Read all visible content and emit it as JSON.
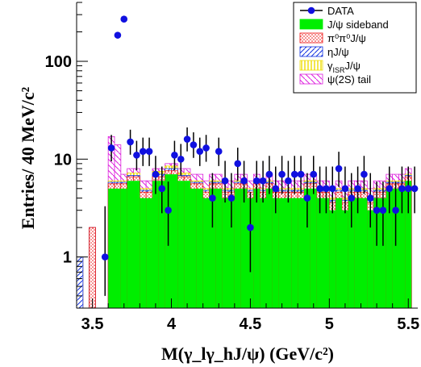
{
  "chart_data": {
    "type": "bar",
    "xlabel": "M(γ_lγ_hJ/ψ)  (GeV/c²)",
    "ylabel": "Entries/ 40 MeV/c²",
    "xlim": [
      3.4,
      5.56
    ],
    "ylim": [
      0.3,
      400
    ],
    "yscale": "log",
    "x_ticks": [
      "3.5",
      "4",
      "4.5",
      "5",
      "5.5"
    ],
    "y_ticks": [
      "1",
      "10",
      "100"
    ],
    "legend_position": "top-right",
    "colors": {
      "data": "#1010e0",
      "sideband": "#00ee00",
      "pi0pi0": "#ee1010",
      "eta": "#1030e0",
      "gamma_isr": "#eedd00",
      "psi2s": "#dd20dd"
    },
    "series": [
      {
        "name": "DATA",
        "kind": "points",
        "x": [
          3.58,
          3.62,
          3.66,
          3.7,
          3.74,
          3.78,
          3.82,
          3.86,
          3.9,
          3.94,
          3.98,
          4.02,
          4.06,
          4.1,
          4.14,
          4.18,
          4.22,
          4.26,
          4.3,
          4.34,
          4.38,
          4.42,
          4.46,
          4.5,
          4.54,
          4.58,
          4.62,
          4.66,
          4.7,
          4.74,
          4.78,
          4.82,
          4.86,
          4.9,
          4.94,
          4.98,
          5.02,
          5.06,
          5.1,
          5.14,
          5.18,
          5.22,
          5.26,
          5.3,
          5.34,
          5.38,
          5.42,
          5.46,
          5.5,
          5.54
        ],
        "y": [
          1,
          13,
          185,
          270,
          15,
          11,
          12,
          12,
          7,
          5,
          3,
          11,
          10,
          16,
          14,
          12,
          13,
          4,
          12,
          6,
          4,
          9,
          6,
          2,
          6,
          6,
          7,
          5,
          7,
          6,
          7,
          7,
          4,
          7,
          5,
          5,
          5,
          8,
          5,
          4,
          5,
          7,
          4,
          3,
          3,
          5,
          3,
          5,
          5,
          5
        ],
        "err_lo": [
          0.6,
          3.5,
          14,
          16,
          3.9,
          3.3,
          3.5,
          3.5,
          2.6,
          2.2,
          1.7,
          3.3,
          3.2,
          4,
          3.7,
          3.5,
          3.6,
          2,
          3.5,
          2.4,
          2,
          3,
          2.4,
          1.3,
          2.4,
          2.4,
          2.6,
          2.2,
          2.6,
          2.4,
          2.6,
          2.6,
          2,
          2.6,
          2.2,
          2.2,
          2.2,
          2.8,
          2.2,
          2,
          2.2,
          2.6,
          2,
          1.7,
          1.7,
          2.2,
          1.7,
          2.2,
          2.2,
          2.2
        ],
        "err_hi": [
          2.3,
          4.7,
          14,
          17,
          5,
          4.4,
          4.6,
          4.6,
          3.8,
          3.4,
          2.9,
          4.4,
          4.3,
          5.1,
          4.8,
          4.6,
          4.7,
          3.2,
          4.6,
          3.6,
          3.2,
          4.1,
          3.6,
          2.6,
          3.6,
          3.6,
          3.8,
          3.4,
          3.8,
          3.6,
          3.8,
          3.8,
          3.2,
          3.8,
          3.4,
          3.4,
          3.4,
          3.9,
          3.4,
          3.2,
          3.4,
          3.8,
          3.2,
          2.9,
          2.9,
          3.4,
          2.9,
          3.4,
          3.4,
          3.4
        ]
      },
      {
        "name": "J/ψ sideband",
        "kind": "hist",
        "values": [
          0,
          0,
          0,
          0,
          0,
          5,
          5,
          5,
          6,
          6,
          4,
          4,
          6,
          6,
          7,
          7,
          6,
          6,
          5,
          5,
          4,
          5,
          5,
          4,
          4,
          5,
          5,
          4,
          5,
          4,
          5,
          4,
          4,
          4,
          4,
          4,
          5,
          5,
          4,
          4,
          3,
          4,
          3,
          4,
          4,
          4,
          3,
          4,
          4,
          5,
          5,
          5,
          6
        ]
      },
      {
        "name": "π⁰π⁰J/ψ",
        "kind": "hist",
        "values": [
          0,
          0,
          2,
          0,
          0,
          5.6,
          5.6,
          5.6,
          6.6,
          6.6,
          4.6,
          4.6,
          6.6,
          6.6,
          7.6,
          7.6,
          6.6,
          6.6,
          5.6,
          5.6,
          4.6,
          5.6,
          5.6,
          4.6,
          4.6,
          5.6,
          5.6,
          4.6,
          5.6,
          4.6,
          5.6,
          4.6,
          4.6,
          4.6,
          4.6,
          4.6,
          5.6,
          5.6,
          4.6,
          4.6,
          3.6,
          4.6,
          3.6,
          4.6,
          4.6,
          4.6,
          3.6,
          4.6,
          4.6,
          5.6,
          5.6,
          5.6,
          6.6
        ]
      },
      {
        "name": "ηJ/ψ",
        "kind": "hist",
        "values": [
          1,
          0,
          2,
          0,
          0,
          5.8,
          5.8,
          5.8,
          6.8,
          6.8,
          4.8,
          4.8,
          7,
          7,
          8,
          8,
          6.8,
          6.8,
          5.8,
          5.8,
          4.8,
          5.8,
          5.8,
          4.8,
          4.8,
          5.8,
          5.8,
          4.8,
          5.8,
          4.8,
          5.8,
          4.8,
          4.8,
          4.8,
          4.8,
          4.8,
          5.8,
          5.8,
          4.8,
          4.8,
          3.8,
          4.8,
          3.8,
          4.8,
          4.8,
          4.8,
          3.8,
          4.8,
          4.8,
          5.8,
          5.8,
          5.8,
          6.8
        ]
      },
      {
        "name": "γ_ISRJ/ψ",
        "kind": "hist",
        "values": [
          1,
          0,
          2,
          0,
          0,
          6,
          6,
          6,
          7.2,
          7.2,
          5,
          5,
          7.5,
          7.5,
          8.5,
          8.5,
          7.2,
          7.2,
          6,
          6,
          5,
          6,
          6,
          5,
          5,
          6,
          6,
          5,
          6,
          5,
          6,
          5,
          5,
          5,
          5,
          5,
          6,
          6,
          5,
          5,
          4,
          5,
          4,
          5,
          5,
          5,
          4,
          5,
          5,
          6,
          6,
          6,
          7
        ]
      },
      {
        "name": "ψ(2S) tail",
        "kind": "hist",
        "values": [
          1,
          0,
          2,
          0,
          0,
          17,
          14,
          7,
          8,
          8,
          6,
          6,
          8,
          8,
          9,
          9,
          8,
          8,
          7,
          7,
          6,
          7,
          7,
          6,
          6,
          7,
          7,
          6,
          7,
          6,
          7,
          6,
          6,
          6,
          6,
          6,
          7,
          7,
          6,
          6,
          5,
          6,
          5,
          6,
          6,
          6,
          5,
          6,
          6,
          7,
          7,
          7,
          8
        ]
      }
    ],
    "legend": [
      "DATA",
      "J/ψ sideband",
      "π⁰π⁰J/ψ",
      "ηJ/ψ",
      "γ_ISRJ/ψ",
      "ψ(2S) tail"
    ]
  }
}
